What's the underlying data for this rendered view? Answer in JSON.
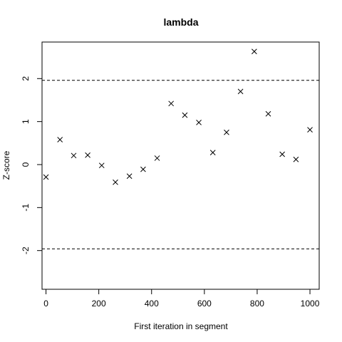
{
  "chart_data": {
    "type": "scatter",
    "title": "lambda",
    "xlabel": "First iteration in segment",
    "ylabel": "Z-score",
    "xlim": [
      -15,
      1035
    ],
    "ylim": [
      -2.9,
      2.85
    ],
    "x_ticks": [
      0,
      200,
      400,
      600,
      800,
      1000
    ],
    "x_tick_labels": [
      "0",
      "200",
      "400",
      "600",
      "800",
      "1000"
    ],
    "y_ticks": [
      -2,
      -1,
      0,
      1,
      2
    ],
    "y_tick_labels": [
      "-2",
      "-1",
      "0",
      "1",
      "2"
    ],
    "grid": false,
    "marker": "x",
    "reference_lines": [
      1.96,
      -1.96
    ],
    "x": [
      0,
      53,
      105,
      158,
      211,
      263,
      316,
      368,
      421,
      474,
      526,
      579,
      632,
      684,
      737,
      789,
      842,
      895,
      947,
      1000
    ],
    "y": [
      -0.29,
      0.58,
      0.21,
      0.22,
      -0.02,
      -0.41,
      -0.27,
      -0.11,
      0.15,
      1.42,
      1.15,
      0.98,
      0.28,
      0.75,
      1.7,
      2.63,
      1.18,
      0.24,
      0.12,
      0.81
    ]
  }
}
